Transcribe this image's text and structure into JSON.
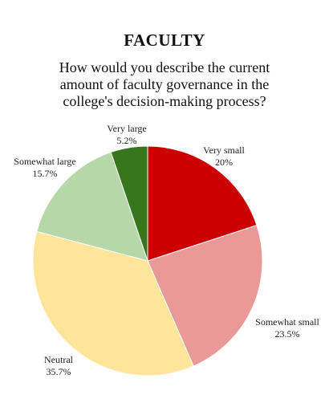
{
  "header": {
    "title": "FACULTY",
    "question_lines": [
      "How would you describe the current",
      "amount of faculty governance in the",
      "college's decision-making process?"
    ]
  },
  "chart_data": {
    "type": "pie",
    "title": "FACULTY",
    "subtitle": "How would you describe the current amount of faculty governance in the college's decision-making process?",
    "categories": [
      "Very small",
      "Somewhat small",
      "Neutral",
      "Somewhat large",
      "Very large"
    ],
    "values": [
      20,
      23.5,
      35.7,
      15.7,
      5.2
    ],
    "value_labels": [
      "20%",
      "23.5%",
      "35.7%",
      "15.7%",
      "5.2%"
    ],
    "colors": [
      "#cc0000",
      "#ea9999",
      "#ffe599",
      "#b6d7a8",
      "#38761d"
    ],
    "start_angle": "12 o'clock",
    "direction": "clockwise"
  }
}
